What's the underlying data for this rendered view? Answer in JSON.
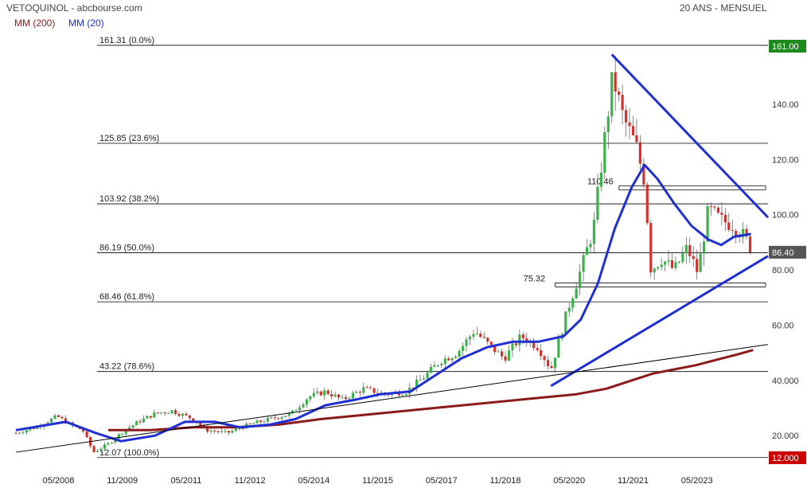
{
  "header": {
    "title": "VETOQUINOL - abcbourse.com",
    "period": "20 ANS - MENSUEL",
    "legend": [
      {
        "label": "MM (200)",
        "color": "#8b1a1a"
      },
      {
        "label": "MM (20)",
        "color": "#1f2fd6"
      }
    ]
  },
  "colors": {
    "up": "#3cb34a",
    "down": "#d9302c",
    "mm200": "#8b1a1a",
    "mm20": "#1f2fd6",
    "trend": "#1f2fd6",
    "fibline": "#000000",
    "badge_high": "#1e8a1e",
    "badge_low": "#cc0000",
    "badge_last": "#555555"
  },
  "chart_data": {
    "type": "candlestick",
    "ylim": [
      12,
      161
    ],
    "y_ticks": [
      20,
      40,
      60,
      80,
      100,
      120,
      140
    ],
    "y_tick_labels": [
      "20.000",
      "40.000",
      "60.00",
      "80.00",
      "100.00",
      "120.00",
      "140.00"
    ],
    "x_ticks": [
      {
        "t": 2008.33,
        "label": "05/2008"
      },
      {
        "t": 2009.83,
        "label": "11/2009"
      },
      {
        "t": 2011.33,
        "label": "05/2011"
      },
      {
        "t": 2012.83,
        "label": "11/2012"
      },
      {
        "t": 2014.33,
        "label": "05/2014"
      },
      {
        "t": 2015.83,
        "label": "11/2015"
      },
      {
        "t": 2017.33,
        "label": "05/2017"
      },
      {
        "t": 2018.83,
        "label": "11/2018"
      },
      {
        "t": 2020.33,
        "label": "05/2020"
      },
      {
        "t": 2021.83,
        "label": "11/2021"
      },
      {
        "t": 2023.33,
        "label": "05/2023"
      }
    ],
    "fibonacci": [
      {
        "value": 161.31,
        "label": "161.31  (0.0%)"
      },
      {
        "value": 125.85,
        "label": "125.85  (23.6%)"
      },
      {
        "value": 103.92,
        "label": "103.92  (38.2%)"
      },
      {
        "value": 86.19,
        "label": "86.19  (50.0%)"
      },
      {
        "value": 68.46,
        "label": "68.46  (61.8%)"
      },
      {
        "value": 43.22,
        "label": "43.22  (78.6%)"
      },
      {
        "value": 12.07,
        "label": "12.07  (100.0%)"
      }
    ],
    "levels": [
      {
        "value": 110.46,
        "label": "110.46",
        "t0": 2021.5,
        "t1": 2025.0
      },
      {
        "value": 75.32,
        "label": "75.32",
        "t0": 2020.0,
        "t1": 2025.0
      }
    ],
    "badges": {
      "high": "161.00",
      "low": "12.000",
      "last": "86.40"
    },
    "badge_values": {
      "high": 161.0,
      "low": 12.0,
      "last": 86.4
    },
    "trendlines": [
      {
        "name": "upper",
        "points": [
          [
            2021.33,
            158
          ],
          [
            2025.0,
            99
          ]
        ]
      },
      {
        "name": "lower",
        "points": [
          [
            2019.9,
            38
          ],
          [
            2025.0,
            85
          ]
        ]
      },
      {
        "name": "long",
        "points": [
          [
            2007.33,
            14
          ],
          [
            2025.0,
            53
          ]
        ]
      }
    ],
    "key_points": [
      [
        2007.33,
        21
      ],
      [
        2007.8,
        23
      ],
      [
        2008.3,
        27
      ],
      [
        2008.6,
        24
      ],
      [
        2008.9,
        22
      ],
      [
        2009.15,
        14
      ],
      [
        2009.5,
        17
      ],
      [
        2009.8,
        21
      ],
      [
        2010.2,
        25
      ],
      [
        2010.6,
        28
      ],
      [
        2011.0,
        29
      ],
      [
        2011.5,
        26
      ],
      [
        2011.8,
        22
      ],
      [
        2012.3,
        21
      ],
      [
        2012.8,
        24
      ],
      [
        2013.3,
        26
      ],
      [
        2013.8,
        28
      ],
      [
        2014.2,
        34
      ],
      [
        2014.6,
        36
      ],
      [
        2015.0,
        33
      ],
      [
        2015.5,
        37
      ],
      [
        2016.0,
        35
      ],
      [
        2016.5,
        36
      ],
      [
        2016.9,
        41
      ],
      [
        2017.3,
        47
      ],
      [
        2017.7,
        50
      ],
      [
        2018.1,
        58
      ],
      [
        2018.5,
        52
      ],
      [
        2018.8,
        48
      ],
      [
        2019.2,
        56
      ],
      [
        2019.6,
        52
      ],
      [
        2019.9,
        44
      ],
      [
        2020.1,
        55
      ],
      [
        2020.3,
        66
      ],
      [
        2020.6,
        80
      ],
      [
        2020.9,
        95
      ],
      [
        2021.1,
        120
      ],
      [
        2021.35,
        150
      ],
      [
        2021.6,
        135
      ],
      [
        2021.9,
        125
      ],
      [
        2022.1,
        112
      ],
      [
        2022.25,
        80
      ],
      [
        2022.5,
        84
      ],
      [
        2022.8,
        80
      ],
      [
        2023.1,
        88
      ],
      [
        2023.35,
        79
      ],
      [
        2023.6,
        102
      ],
      [
        2023.9,
        98
      ],
      [
        2024.2,
        96
      ],
      [
        2024.45,
        92
      ],
      [
        2024.65,
        86.4
      ]
    ],
    "mm20_points": [
      [
        2007.33,
        22
      ],
      [
        2008.5,
        25
      ],
      [
        2009.2,
        21
      ],
      [
        2009.8,
        18
      ],
      [
        2010.6,
        20
      ],
      [
        2011.3,
        25
      ],
      [
        2012.0,
        25
      ],
      [
        2012.6,
        23
      ],
      [
        2013.3,
        24
      ],
      [
        2013.9,
        26
      ],
      [
        2014.6,
        31
      ],
      [
        2015.3,
        33
      ],
      [
        2015.9,
        35
      ],
      [
        2016.6,
        36
      ],
      [
        2017.2,
        42
      ],
      [
        2017.8,
        48
      ],
      [
        2018.4,
        52
      ],
      [
        2019.0,
        54
      ],
      [
        2019.6,
        54
      ],
      [
        2020.2,
        56
      ],
      [
        2020.6,
        62
      ],
      [
        2021.0,
        75
      ],
      [
        2021.4,
        95
      ],
      [
        2021.8,
        110
      ],
      [
        2022.1,
        118
      ],
      [
        2022.4,
        113
      ],
      [
        2022.8,
        104
      ],
      [
        2023.2,
        96
      ],
      [
        2023.6,
        91
      ],
      [
        2023.9,
        89
      ],
      [
        2024.2,
        92
      ],
      [
        2024.6,
        93
      ]
    ],
    "mm200_points": [
      [
        2009.5,
        22
      ],
      [
        2010.5,
        22
      ],
      [
        2011.5,
        23
      ],
      [
        2012.5,
        23
      ],
      [
        2013.5,
        24
      ],
      [
        2014.5,
        26
      ],
      [
        2015.5,
        27.5
      ],
      [
        2016.5,
        29
      ],
      [
        2017.5,
        30.5
      ],
      [
        2018.5,
        32
      ],
      [
        2019.5,
        33.5
      ],
      [
        2020.5,
        35
      ],
      [
        2021.2,
        37
      ],
      [
        2021.8,
        40
      ],
      [
        2022.3,
        42.5
      ],
      [
        2022.8,
        44
      ],
      [
        2023.3,
        45.5
      ],
      [
        2023.8,
        47.5
      ],
      [
        2024.3,
        49.5
      ],
      [
        2024.65,
        51
      ]
    ]
  }
}
